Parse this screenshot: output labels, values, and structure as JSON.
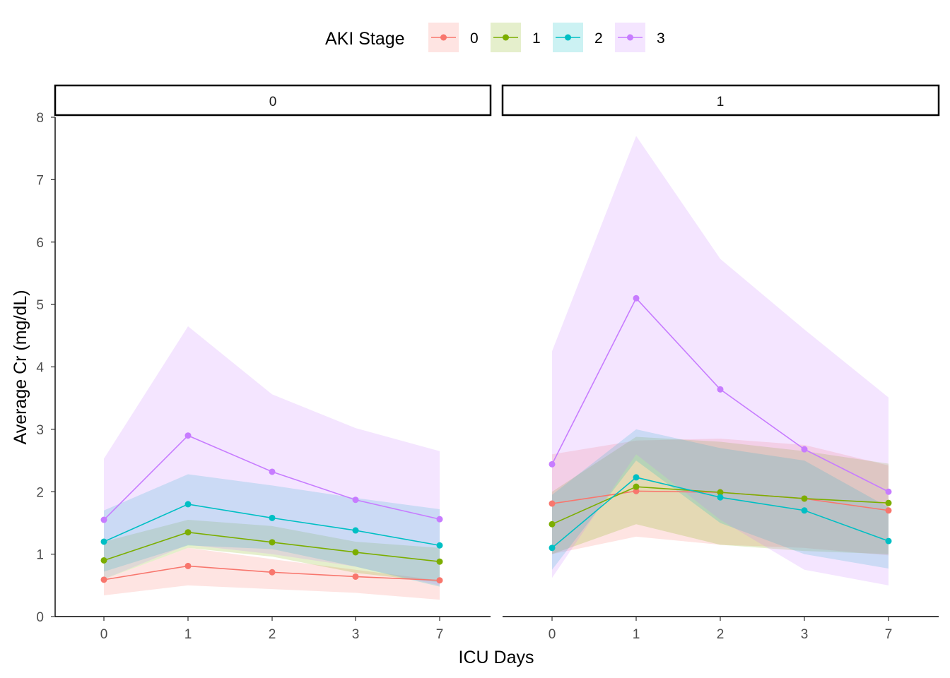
{
  "chart_data": {
    "type": "line",
    "xlabel": "ICU Days",
    "ylabel": "Average Cr (mg/dL)",
    "ylim": [
      0,
      8
    ],
    "yticks": [
      "0",
      "1",
      "2",
      "3",
      "4",
      "5",
      "6",
      "7",
      "8"
    ],
    "categories": [
      "0",
      "1",
      "2",
      "3",
      "7"
    ],
    "legend": {
      "title": "AKI Stage",
      "position": "top",
      "entries": [
        "0",
        "1",
        "2",
        "3"
      ]
    },
    "colors": {
      "0": "#F8766D",
      "1": "#7CAE00",
      "2": "#00BFC4",
      "3": "#C77CFF"
    },
    "grid": false,
    "panels": [
      {
        "label": "0",
        "series": [
          {
            "name": "0",
            "values": [
              0.59,
              0.81,
              0.71,
              0.64,
              0.58
            ],
            "lower": [
              0.34,
              0.5,
              0.44,
              0.38,
              0.27
            ],
            "upper": [
              0.6,
              1.1,
              0.92,
              0.75,
              0.58
            ]
          },
          {
            "name": "1",
            "values": [
              0.9,
              1.35,
              1.19,
              1.03,
              0.88
            ],
            "lower": [
              0.6,
              1.1,
              0.96,
              0.7,
              0.55
            ],
            "upper": [
              1.2,
              1.55,
              1.45,
              1.2,
              1.1
            ]
          },
          {
            "name": "2",
            "values": [
              1.2,
              1.8,
              1.58,
              1.38,
              1.14
            ],
            "lower": [
              0.72,
              1.14,
              1.08,
              0.8,
              0.48
            ],
            "upper": [
              1.7,
              2.28,
              2.1,
              1.9,
              1.72
            ]
          },
          {
            "name": "3",
            "values": [
              1.55,
              2.9,
              2.32,
              1.87,
              1.56
            ],
            "lower": [
              0.6,
              1.15,
              1.0,
              0.8,
              0.5
            ],
            "upper": [
              2.53,
              4.65,
              3.56,
              3.02,
              2.65
            ]
          }
        ]
      },
      {
        "label": "1",
        "series": [
          {
            "name": "0",
            "values": [
              1.81,
              2.01,
              1.99,
              1.89,
              1.7
            ],
            "lower": [
              1.0,
              1.28,
              1.15,
              1.1,
              0.98
            ],
            "upper": [
              2.6,
              2.82,
              2.85,
              2.75,
              2.42
            ]
          },
          {
            "name": "1",
            "values": [
              1.48,
              2.08,
              1.99,
              1.89,
              1.82
            ],
            "lower": [
              1.0,
              1.48,
              1.15,
              1.05,
              1.0
            ],
            "upper": [
              2.0,
              2.88,
              2.8,
              2.65,
              2.45
            ]
          },
          {
            "name": "2",
            "values": [
              1.1,
              2.23,
              1.91,
              1.7,
              1.21
            ],
            "lower": [
              0.75,
              2.5,
              1.5,
              1.0,
              0.77
            ],
            "upper": [
              1.95,
              3.0,
              2.7,
              2.5,
              1.75
            ]
          },
          {
            "name": "3",
            "values": [
              2.44,
              5.1,
              3.64,
              2.68,
              2.0
            ],
            "lower": [
              0.62,
              2.6,
              1.55,
              0.75,
              0.5
            ],
            "upper": [
              4.25,
              7.7,
              5.73,
              4.6,
              3.51
            ]
          }
        ]
      }
    ]
  }
}
